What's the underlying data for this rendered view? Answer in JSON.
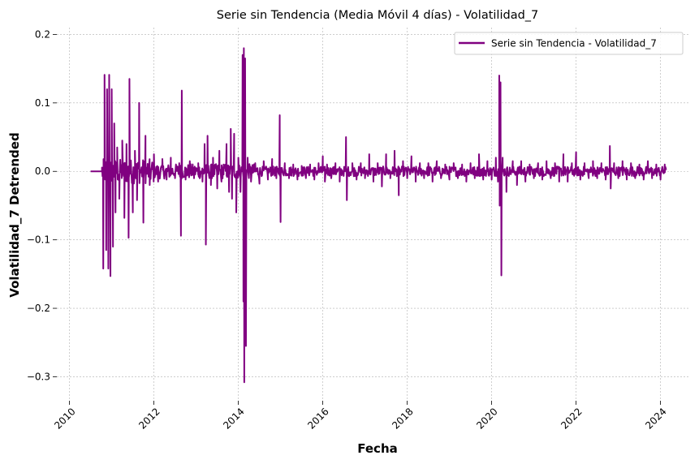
{
  "chart_data": {
    "type": "line",
    "title": "Serie sin Tendencia (Media Móvil 4 días) - Volatilidad_7",
    "xlabel": "Fecha",
    "ylabel": "Volatilidad_7 Detrended",
    "xlim": [
      2009.7,
      2024.7
    ],
    "ylim": [
      -0.335,
      0.21
    ],
    "x_ticks": [
      2010,
      2012,
      2014,
      2016,
      2018,
      2020,
      2022,
      2024
    ],
    "x_tick_labels": [
      "2010",
      "2012",
      "2014",
      "2016",
      "2018",
      "2020",
      "2022",
      "2024"
    ],
    "y_ticks": [
      -0.3,
      -0.2,
      -0.1,
      0.0,
      0.1,
      0.2
    ],
    "y_tick_labels": [
      "−0.3",
      "−0.2",
      "−0.1",
      "0.0",
      "0.1",
      "0.2"
    ],
    "grid": true,
    "legend": {
      "position": "top-right",
      "entries": [
        "Serie sin Tendencia - Volatilidad_7"
      ]
    },
    "series": [
      {
        "name": "Serie sin Tendencia - Volatilidad_7",
        "color": "#800080",
        "x_start": 2010.5,
        "x_end": 2024.13,
        "flat_until": 2010.77,
        "noise_amplitude": 0.006,
        "spikes": [
          [
            2010.77,
            0.0
          ],
          [
            2010.8,
            -0.142
          ],
          [
            2010.83,
            0.141
          ],
          [
            2010.87,
            -0.115
          ],
          [
            2010.89,
            0.12
          ],
          [
            2010.92,
            -0.142
          ],
          [
            2010.94,
            0.141
          ],
          [
            2010.97,
            -0.153
          ],
          [
            2011.0,
            0.12
          ],
          [
            2011.03,
            -0.11
          ],
          [
            2011.06,
            0.07
          ],
          [
            2011.09,
            -0.06
          ],
          [
            2011.13,
            0.035
          ],
          [
            2011.18,
            -0.04
          ],
          [
            2011.25,
            0.045
          ],
          [
            2011.3,
            -0.068
          ],
          [
            2011.35,
            0.04
          ],
          [
            2011.4,
            -0.097
          ],
          [
            2011.42,
            0.135
          ],
          [
            2011.5,
            -0.06
          ],
          [
            2011.55,
            0.03
          ],
          [
            2011.6,
            -0.042
          ],
          [
            2011.65,
            0.1
          ],
          [
            2011.75,
            -0.075
          ],
          [
            2011.8,
            0.052
          ],
          [
            2011.9,
            -0.02
          ],
          [
            2012.0,
            0.025
          ],
          [
            2012.1,
            -0.015
          ],
          [
            2012.2,
            0.018
          ],
          [
            2012.3,
            -0.012
          ],
          [
            2012.4,
            0.02
          ],
          [
            2012.5,
            -0.01
          ],
          [
            2012.6,
            0.012
          ],
          [
            2012.64,
            -0.094
          ],
          [
            2012.66,
            0.118
          ],
          [
            2012.75,
            -0.012
          ],
          [
            2012.85,
            0.015
          ],
          [
            2012.95,
            -0.01
          ],
          [
            2013.05,
            0.012
          ],
          [
            2013.15,
            -0.015
          ],
          [
            2013.2,
            0.04
          ],
          [
            2013.23,
            -0.107
          ],
          [
            2013.27,
            0.052
          ],
          [
            2013.35,
            -0.02
          ],
          [
            2013.4,
            0.02
          ],
          [
            2013.5,
            -0.025
          ],
          [
            2013.55,
            0.03
          ],
          [
            2013.6,
            -0.015
          ],
          [
            2013.65,
            0.01
          ],
          [
            2013.72,
            0.04
          ],
          [
            2013.78,
            -0.03
          ],
          [
            2013.82,
            0.062
          ],
          [
            2013.85,
            -0.04
          ],
          [
            2013.9,
            0.055
          ],
          [
            2013.95,
            -0.06
          ],
          [
            2014.0,
            0.02
          ],
          [
            2014.05,
            -0.03
          ],
          [
            2014.1,
            0.17
          ],
          [
            2014.12,
            -0.19
          ],
          [
            2014.13,
            0.18
          ],
          [
            2014.14,
            -0.308
          ],
          [
            2014.16,
            0.165
          ],
          [
            2014.18,
            -0.255
          ],
          [
            2014.22,
            0.02
          ],
          [
            2014.3,
            -0.015
          ],
          [
            2014.4,
            0.012
          ],
          [
            2014.5,
            -0.018
          ],
          [
            2014.6,
            0.015
          ],
          [
            2014.7,
            -0.012
          ],
          [
            2014.8,
            0.018
          ],
          [
            2014.9,
            -0.01
          ],
          [
            2014.98,
            0.082
          ],
          [
            2015.0,
            -0.074
          ],
          [
            2015.1,
            0.012
          ],
          [
            2015.2,
            -0.01
          ],
          [
            2015.3,
            0.01
          ],
          [
            2015.4,
            -0.012
          ],
          [
            2015.5,
            0.008
          ],
          [
            2015.6,
            -0.01
          ],
          [
            2015.7,
            0.01
          ],
          [
            2015.8,
            -0.012
          ],
          [
            2015.9,
            0.012
          ],
          [
            2016.0,
            0.022
          ],
          [
            2016.05,
            -0.015
          ],
          [
            2016.1,
            0.01
          ],
          [
            2016.2,
            -0.01
          ],
          [
            2016.3,
            0.012
          ],
          [
            2016.4,
            -0.015
          ],
          [
            2016.55,
            0.05
          ],
          [
            2016.57,
            -0.042
          ],
          [
            2016.7,
            0.012
          ],
          [
            2016.8,
            -0.012
          ],
          [
            2016.9,
            0.012
          ],
          [
            2017.0,
            -0.01
          ],
          [
            2017.1,
            0.025
          ],
          [
            2017.2,
            -0.015
          ],
          [
            2017.3,
            0.012
          ],
          [
            2017.4,
            -0.022
          ],
          [
            2017.5,
            0.025
          ],
          [
            2017.6,
            -0.01
          ],
          [
            2017.7,
            0.03
          ],
          [
            2017.8,
            -0.035
          ],
          [
            2017.9,
            0.015
          ],
          [
            2018.0,
            -0.01
          ],
          [
            2018.1,
            0.022
          ],
          [
            2018.2,
            -0.015
          ],
          [
            2018.3,
            0.012
          ],
          [
            2018.4,
            -0.01
          ],
          [
            2018.5,
            0.012
          ],
          [
            2018.6,
            -0.015
          ],
          [
            2018.7,
            0.015
          ],
          [
            2018.8,
            -0.01
          ],
          [
            2018.9,
            0.01
          ],
          [
            2019.0,
            -0.012
          ],
          [
            2019.1,
            0.012
          ],
          [
            2019.2,
            -0.01
          ],
          [
            2019.3,
            0.01
          ],
          [
            2019.4,
            -0.015
          ],
          [
            2019.5,
            0.012
          ],
          [
            2019.6,
            -0.01
          ],
          [
            2019.7,
            0.025
          ],
          [
            2019.8,
            -0.012
          ],
          [
            2019.9,
            0.015
          ],
          [
            2020.0,
            -0.012
          ],
          [
            2020.1,
            0.02
          ],
          [
            2020.15,
            -0.015
          ],
          [
            2020.18,
            0.14
          ],
          [
            2020.19,
            -0.05
          ],
          [
            2020.21,
            0.13
          ],
          [
            2020.23,
            -0.152
          ],
          [
            2020.26,
            0.02
          ],
          [
            2020.35,
            -0.03
          ],
          [
            2020.5,
            0.015
          ],
          [
            2020.6,
            -0.02
          ],
          [
            2020.7,
            0.015
          ],
          [
            2020.8,
            -0.015
          ],
          [
            2020.9,
            0.01
          ],
          [
            2021.0,
            -0.01
          ],
          [
            2021.1,
            0.012
          ],
          [
            2021.2,
            -0.012
          ],
          [
            2021.3,
            0.015
          ],
          [
            2021.4,
            -0.01
          ],
          [
            2021.5,
            0.012
          ],
          [
            2021.6,
            -0.015
          ],
          [
            2021.7,
            0.025
          ],
          [
            2021.8,
            -0.015
          ],
          [
            2021.9,
            0.012
          ],
          [
            2022.0,
            0.028
          ],
          [
            2022.1,
            -0.012
          ],
          [
            2022.2,
            0.012
          ],
          [
            2022.3,
            -0.01
          ],
          [
            2022.4,
            0.015
          ],
          [
            2022.5,
            -0.01
          ],
          [
            2022.6,
            0.012
          ],
          [
            2022.7,
            -0.012
          ],
          [
            2022.8,
            0.037
          ],
          [
            2022.82,
            -0.025
          ],
          [
            2022.9,
            0.012
          ],
          [
            2023.0,
            -0.01
          ],
          [
            2023.1,
            0.015
          ],
          [
            2023.2,
            -0.012
          ],
          [
            2023.3,
            0.012
          ],
          [
            2023.4,
            -0.01
          ],
          [
            2023.5,
            0.01
          ],
          [
            2023.6,
            -0.012
          ],
          [
            2023.7,
            0.015
          ],
          [
            2023.8,
            -0.01
          ],
          [
            2023.9,
            0.01
          ],
          [
            2024.0,
            -0.012
          ],
          [
            2024.1,
            0.01
          ]
        ]
      }
    ]
  }
}
